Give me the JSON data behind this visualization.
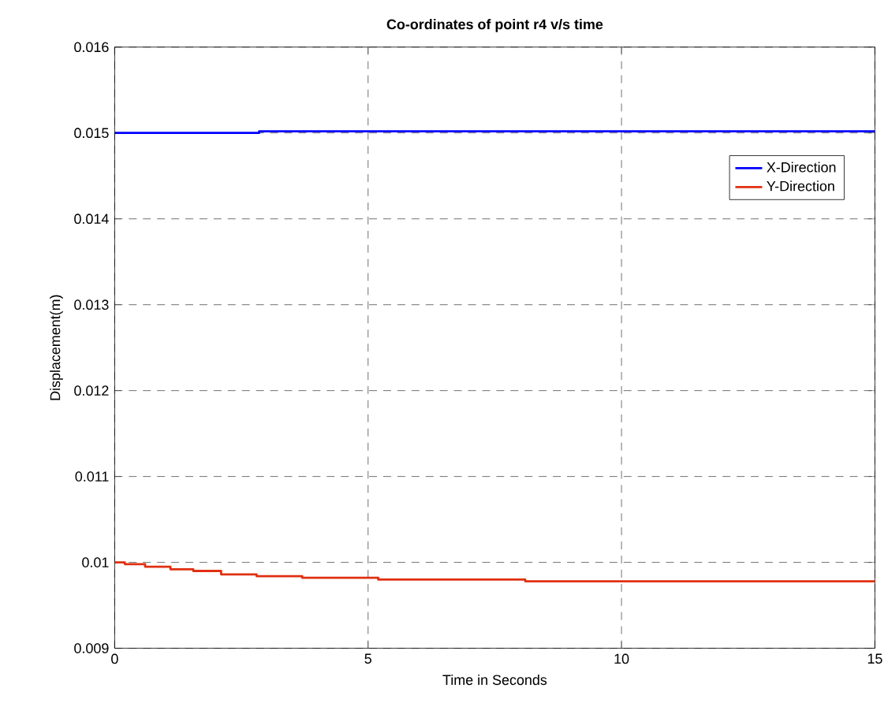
{
  "chart_data": {
    "type": "step",
    "title": "Co-ordinates of point r4 v/s time",
    "xlabel": "Time in Seconds",
    "ylabel": "Displacement(m)",
    "xlim": [
      0,
      15
    ],
    "ylim": [
      0.009,
      0.016
    ],
    "xticks": [
      0,
      5,
      10,
      15
    ],
    "yticks": [
      0.009,
      0.01,
      0.011,
      0.012,
      0.013,
      0.014,
      0.015,
      0.016
    ],
    "grid": true,
    "legend": "top right",
    "series": [
      {
        "name": "X-Direction",
        "color": "#0000ff",
        "x": [
          0,
          2.85,
          15
        ],
        "values": [
          0.015,
          0.01502,
          0.01502
        ]
      },
      {
        "name": "Y-Direction",
        "color": "#e03010",
        "x": [
          0,
          0.2,
          0.6,
          1.1,
          1.55,
          2.1,
          2.8,
          3.7,
          5.2,
          8.1,
          15
        ],
        "values": [
          0.01,
          0.00998,
          0.00995,
          0.00992,
          0.0099,
          0.00986,
          0.00984,
          0.00982,
          0.0098,
          0.00978,
          0.00978
        ]
      }
    ]
  }
}
